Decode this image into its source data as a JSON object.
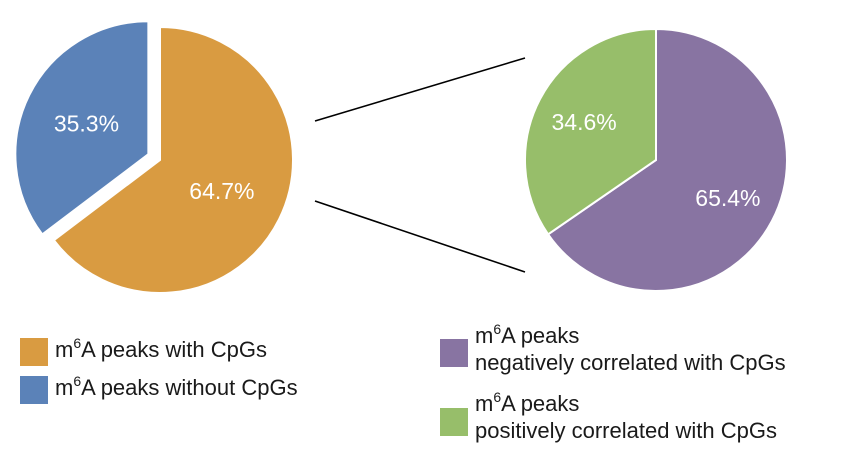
{
  "chart_data": [
    {
      "type": "pie",
      "slices": [
        {
          "label_pre": "m",
          "label_sup": "6",
          "label_post": "A peaks with CpGs",
          "value": 64.7,
          "display": "64.7%",
          "color": "#D99B41"
        },
        {
          "label_pre": "m",
          "label_sup": "6",
          "label_post": "A peaks without CpGs",
          "value": 35.3,
          "display": "35.3%",
          "color": "#5B82B8"
        }
      ]
    },
    {
      "type": "pie",
      "slices": [
        {
          "label_pre": "m",
          "label_sup": "6",
          "label_post": "A peaks",
          "label_line2": "negatively correlated with CpGs",
          "value": 65.4,
          "display": "65.4%",
          "color": "#8874A2"
        },
        {
          "label_pre": "m",
          "label_sup": "6",
          "label_post": "A peaks",
          "label_line2": "positively correlated with CpGs",
          "value": 34.6,
          "display": "34.6%",
          "color": "#97BE6A"
        }
      ]
    }
  ]
}
